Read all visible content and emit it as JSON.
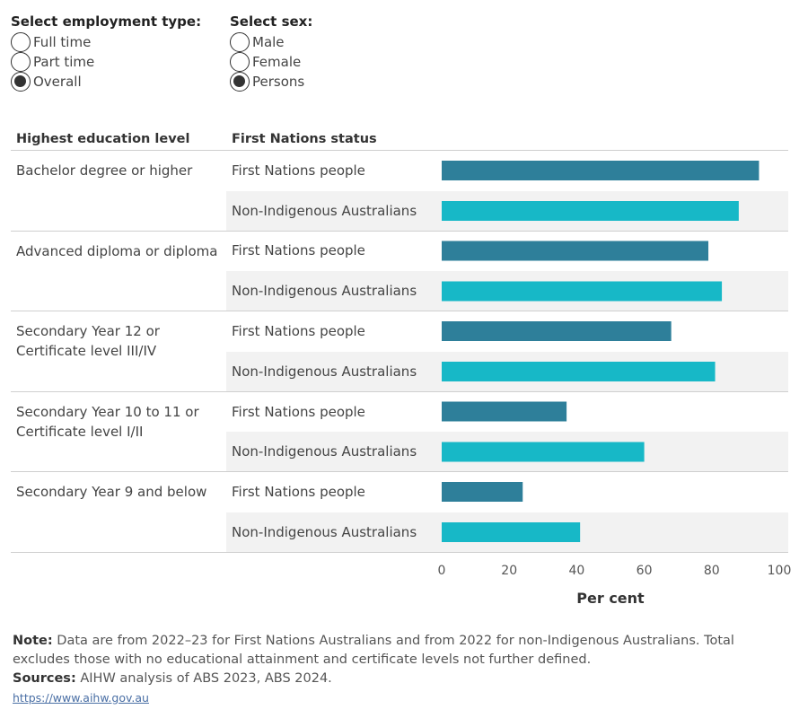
{
  "filters": {
    "employment": {
      "title": "Select employment type:",
      "options": [
        "Full time",
        "Part time",
        "Overall"
      ],
      "selected": "Overall"
    },
    "sex": {
      "title": "Select sex:",
      "options": [
        "Male",
        "Female",
        "Persons"
      ],
      "selected": "Persons"
    }
  },
  "table": {
    "col1_header": "Highest education level",
    "col2_header": "First Nations status"
  },
  "colors": {
    "first_nations": "#2e7f9a",
    "non_indigenous": "#17b8c7"
  },
  "chart_data": {
    "type": "bar",
    "orientation": "horizontal",
    "groups": [
      "Bachelor degree or higher",
      "Advanced diploma or diploma",
      "Secondary Year 12 or Certificate level III/IV",
      "Secondary Year 10 to 11 or Certificate level I/II",
      "Secondary Year 9 and below"
    ],
    "series": [
      {
        "name": "First Nations people",
        "values": [
          94,
          79,
          68,
          37,
          24
        ]
      },
      {
        "name": "Non-Indigenous Australians",
        "values": [
          88,
          83,
          81,
          60,
          41
        ]
      }
    ],
    "xlabel": "Per cent",
    "xlim": [
      0,
      100
    ],
    "xticks": [
      0,
      20,
      40,
      60,
      80,
      100
    ]
  },
  "footer": {
    "note_label": "Note:",
    "note_text": "Data are from 2022–23 for First Nations Australians and from 2022 for non-Indigenous Australians. Total excludes those with no educational attainment and certificate levels not further defined.",
    "sources_label": "Sources:",
    "sources_text": "AIHW analysis of ABS 2023, ABS 2024.",
    "link": "https://www.aihw.gov.au"
  }
}
